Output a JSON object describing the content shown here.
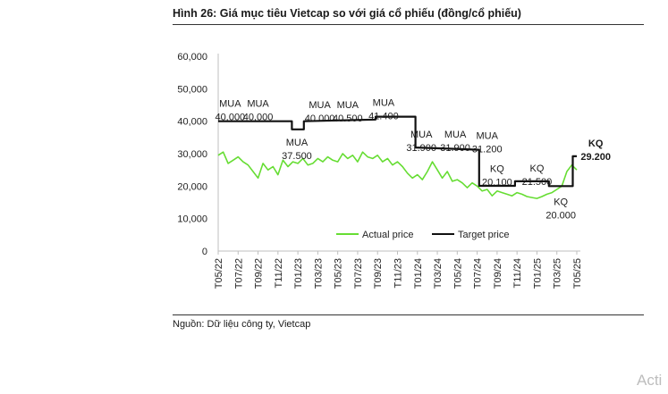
{
  "figure": {
    "title": "Hình 26: Giá mục tiêu Vietcap so với giá cổ phiếu (đồng/cổ phiếu)",
    "source": "Nguồn: Dữ liệu công ty, Vietcap",
    "watermark": "Acti"
  },
  "chart_data": {
    "type": "line",
    "title": "Hình 26: Giá mục tiêu Vietcap so với giá cổ phiếu (đồng/cổ phiếu)",
    "xlabel": "",
    "ylabel": "",
    "ylim": [
      0,
      60000
    ],
    "y_ticks": [
      "0",
      "10,000",
      "20,000",
      "30,000",
      "40,000",
      "50,000",
      "60,000"
    ],
    "x_tick_labels": [
      "T05/22",
      "T07/22",
      "T09/22",
      "T11/22",
      "T01/23",
      "T03/23",
      "T05/23",
      "T07/23",
      "T09/23",
      "T11/23",
      "T01/24",
      "T03/24",
      "T05/24",
      "T07/24",
      "T09/24",
      "T11/24",
      "T01/25",
      "T03/25",
      "T05/25"
    ],
    "grid": false,
    "legend": "bottom-center",
    "colors": {
      "actual": "#66dd33",
      "target": "#111111"
    },
    "series": [
      {
        "name": "Actual price",
        "x": [
          0.0,
          0.25,
          0.5,
          0.75,
          1.0,
          1.25,
          1.5,
          1.75,
          2.0,
          2.25,
          2.5,
          2.75,
          3.0,
          3.25,
          3.5,
          3.75,
          4.0,
          4.25,
          4.5,
          4.75,
          5.0,
          5.25,
          5.5,
          5.75,
          6.0,
          6.25,
          6.5,
          6.75,
          7.0,
          7.25,
          7.5,
          7.75,
          8.0,
          8.25,
          8.5,
          8.75,
          9.0,
          9.25,
          9.5,
          9.75,
          10.0,
          10.25,
          10.5,
          10.75,
          11.0,
          11.25,
          11.5,
          11.75,
          12.0,
          12.25,
          12.5,
          12.75,
          13.0,
          13.25,
          13.5,
          13.75,
          14.0,
          14.25,
          14.5,
          14.75,
          15.0,
          15.25,
          15.5,
          15.75,
          16.0,
          16.25,
          16.5,
          16.75,
          17.0,
          17.25,
          17.5,
          17.75,
          18.0
        ],
        "values": [
          29500,
          30500,
          27000,
          28000,
          29000,
          27500,
          26500,
          24500,
          22500,
          27000,
          25000,
          26000,
          23500,
          28000,
          26000,
          27500,
          27000,
          28500,
          26500,
          27000,
          28500,
          27500,
          29000,
          28000,
          27500,
          30000,
          28500,
          29500,
          27500,
          30500,
          29000,
          28500,
          29500,
          27500,
          28500,
          26500,
          27500,
          26000,
          24000,
          22500,
          23500,
          22000,
          24500,
          27500,
          25000,
          22500,
          24500,
          21500,
          22000,
          21000,
          19500,
          21000,
          20000,
          18500,
          19000,
          17000,
          18500,
          18000,
          17500,
          17000,
          18000,
          17500,
          16800,
          16500,
          16200,
          16800,
          17500,
          18000,
          19000,
          20000,
          24500,
          26500,
          25000
        ]
      },
      {
        "name": "Target price",
        "x": [
          0,
          3.7,
          3.7,
          4.3,
          4.3,
          7.9,
          7.9,
          9.9,
          9.9,
          13.1,
          13.1,
          14.9,
          14.9,
          16.6,
          16.6,
          17.8,
          17.8,
          18.0
        ],
        "values": [
          40000,
          40000,
          37500,
          37500,
          40000,
          40500,
          41400,
          41400,
          31900,
          31200,
          20100,
          20100,
          21500,
          21500,
          20000,
          20000,
          29200,
          29200
        ]
      }
    ],
    "annotations": [
      {
        "lines": [
          "MUA",
          "40.000"
        ],
        "x": 0.6,
        "y": 44500
      },
      {
        "lines": [
          "MUA",
          "40.000"
        ],
        "x": 2.0,
        "y": 44500
      },
      {
        "lines": [
          "MUA",
          "37.500"
        ],
        "x": 3.95,
        "y": 32500
      },
      {
        "lines": [
          "MUA",
          "40.000"
        ],
        "x": 5.1,
        "y": 44000
      },
      {
        "lines": [
          "MUA",
          "40.500"
        ],
        "x": 6.5,
        "y": 44000
      },
      {
        "lines": [
          "MUA",
          "41.400"
        ],
        "x": 8.3,
        "y": 44700
      },
      {
        "lines": [
          "MUA",
          "31.900"
        ],
        "x": 10.2,
        "y": 35000
      },
      {
        "lines": [
          "MUA",
          "31.900"
        ],
        "x": 11.9,
        "y": 35000
      },
      {
        "lines": [
          "MUA",
          "31.200"
        ],
        "x": 13.5,
        "y": 34500
      },
      {
        "lines": [
          "KQ",
          "20.100"
        ],
        "x": 14.0,
        "y": 24300
      },
      {
        "lines": [
          "KQ",
          "21.500"
        ],
        "x": 16.0,
        "y": 24500
      },
      {
        "lines": [
          "KQ",
          "20.000"
        ],
        "x": 17.2,
        "y": 14200
      },
      {
        "lines": [
          "KQ",
          "29.200"
        ],
        "x": 18.95,
        "y": 32200,
        "bold": true
      }
    ]
  }
}
